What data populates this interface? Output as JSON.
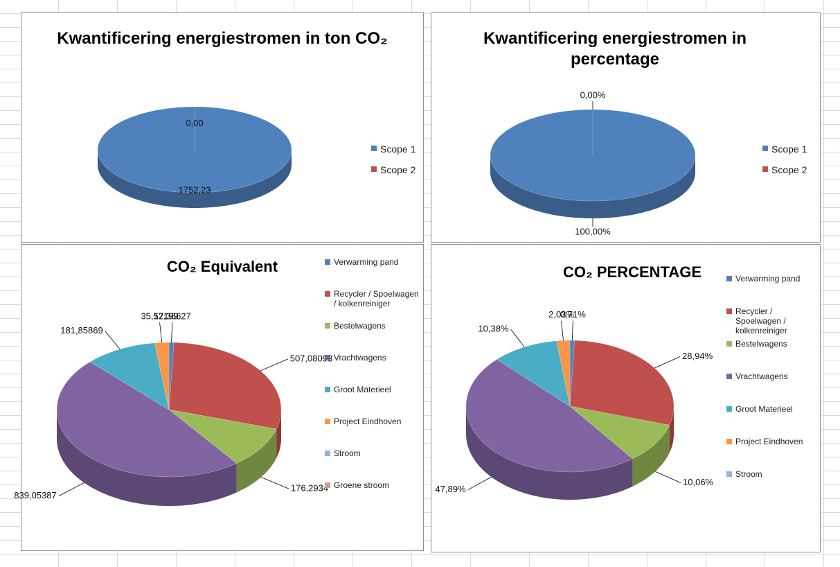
{
  "chart_data": [
    {
      "type": "pie3d",
      "title": "Kwantificering energiestromen in ton CO₂",
      "categories": [
        "Scope 1",
        "Scope 2"
      ],
      "values": [
        1752.23,
        0
      ],
      "value_labels": [
        "1752,23",
        "0,00"
      ],
      "colors": [
        "#4f81bd",
        "#c0504d"
      ]
    },
    {
      "type": "pie3d",
      "title": "Kwantificering energiestromen in percentage",
      "categories": [
        "Scope 1",
        "Scope 2"
      ],
      "values": [
        100,
        0
      ],
      "value_labels": [
        "100,00%",
        "0,00%"
      ],
      "colors": [
        "#4f81bd",
        "#c0504d"
      ]
    },
    {
      "type": "pie3d",
      "title": "CO₂ Equivalent",
      "categories": [
        "Verwarming pand",
        "Recycler / Spoelwagen / kolkenreiniger",
        "Bestelwagens",
        "Vrachtwagens",
        "Groot Materieel",
        "Project Eindhoven",
        "Stroom",
        "Groene stroom"
      ],
      "values": [
        12.36627,
        507.08093,
        176.2934,
        839.05387,
        181.85869,
        35.57199,
        0,
        0
      ],
      "value_labels": [
        "12,36627",
        "507,08093",
        "176,2934",
        "839,05387",
        "181,85869",
        "35,57199",
        null,
        null
      ],
      "colors": [
        "#4f81bd",
        "#c0504d",
        "#9bbb59",
        "#8064a2",
        "#4bacc6",
        "#f79646",
        "#95b3d7",
        "#d99694"
      ]
    },
    {
      "type": "pie3d",
      "title": "CO₂ PERCENTAGE",
      "categories": [
        "Verwarming pand",
        "Recycler / Spoelwagen / kolkenreiniger",
        "Bestelwagens",
        "Vrachtwagens",
        "Groot Materieel",
        "Project Eindhoven",
        "Stroom"
      ],
      "values": [
        0.71,
        28.94,
        10.06,
        47.89,
        10.38,
        2.03,
        0
      ],
      "value_labels": [
        "0,71%",
        "28,94%",
        "10,06%",
        "47,89%",
        "10,38%",
        "2,03%",
        null
      ],
      "colors": [
        "#4f81bd",
        "#c0504d",
        "#9bbb59",
        "#8064a2",
        "#4bacc6",
        "#f79646",
        "#95b3d7"
      ]
    }
  ]
}
